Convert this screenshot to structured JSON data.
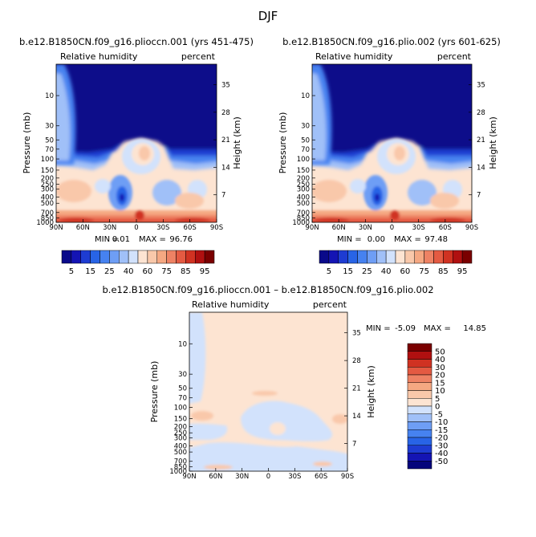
{
  "figure": {
    "title": "DJF",
    "level_colors_abs": [
      "#0a0a8a",
      "#1414b4",
      "#1e3cd2",
      "#2864e6",
      "#4682f0",
      "#6e9ef5",
      "#a0c0f8",
      "#d2e2fc",
      "#fde4d2",
      "#f9c8aa",
      "#f5a882",
      "#ee8264",
      "#e45a42",
      "#d03222",
      "#b01010",
      "#7a0000"
    ],
    "level_colors_diff": [
      "#04047c",
      "#1414b4",
      "#1e3cd2",
      "#2864e6",
      "#4682f0",
      "#6e9ef5",
      "#a0c0f8",
      "#d2e2fc",
      "#fde4d2",
      "#f9c8aa",
      "#f5a882",
      "#ee8264",
      "#e45a42",
      "#d03222",
      "#b01010",
      "#7a0000"
    ]
  },
  "chart_data": [
    {
      "type": "heatmap",
      "title": "b.e12.B1850CN.f09_g16.plioccn.001 (yrs 451-475)",
      "left_label": "Relative humidity",
      "right_label": "percent",
      "xlabel": "",
      "ylabel": "Pressure (mb)",
      "y2label": "Height (km)",
      "x_ticks": [
        "90N",
        "60N",
        "30N",
        "0",
        "30S",
        "60S",
        "90S"
      ],
      "y_ticks": [
        "10",
        "30",
        "50",
        "70",
        "100",
        "150",
        "200",
        "250",
        "300",
        "400",
        "500",
        "700",
        "850",
        "1000"
      ],
      "y2_ticks": [
        "35",
        "28",
        "21",
        "14",
        "7"
      ],
      "xlim": [
        90,
        -90
      ],
      "ylim": [
        1000,
        3
      ],
      "min_label": "MIN =",
      "min": "0.01",
      "max_label": "MAX =",
      "max": "96.76",
      "colorbar_labels": [
        "5",
        "15",
        "25",
        "40",
        "60",
        "75",
        "85",
        "95"
      ]
    },
    {
      "type": "heatmap",
      "title": "b.e12.B1850CN.f09_g16.plio.002 (yrs 601-625)",
      "left_label": "Relative humidity",
      "right_label": "percent",
      "xlabel": "",
      "ylabel": "Pressure (mb)",
      "y2label": "Height (km)",
      "x_ticks": [
        "90N",
        "60N",
        "30N",
        "0",
        "30S",
        "60S",
        "90S"
      ],
      "y_ticks": [
        "10",
        "30",
        "50",
        "70",
        "100",
        "150",
        "200",
        "250",
        "300",
        "400",
        "500",
        "700",
        "850",
        "1000"
      ],
      "y2_ticks": [
        "35",
        "28",
        "21",
        "14",
        "7"
      ],
      "xlim": [
        90,
        -90
      ],
      "ylim": [
        1000,
        3
      ],
      "min_label": "MIN =",
      "min": "0.00",
      "max_label": "MAX =",
      "max": "97.48",
      "colorbar_labels": [
        "5",
        "15",
        "25",
        "40",
        "60",
        "75",
        "85",
        "95"
      ]
    },
    {
      "type": "heatmap",
      "title": "b.e12.B1850CN.f09_g16.plioccn.001 – b.e12.B1850CN.f09_g16.plio.002",
      "left_label": "Relative humidity",
      "right_label": "percent",
      "xlabel": "",
      "ylabel": "Pressure (mb)",
      "y2label": "Height (km)",
      "x_ticks": [
        "90N",
        "60N",
        "30N",
        "0",
        "30S",
        "60S",
        "90S"
      ],
      "y_ticks": [
        "10",
        "30",
        "50",
        "70",
        "100",
        "150",
        "200",
        "250",
        "300",
        "400",
        "500",
        "700",
        "850",
        "1000"
      ],
      "y2_ticks": [
        "35",
        "28",
        "21",
        "14",
        "7"
      ],
      "xlim": [
        90,
        -90
      ],
      "ylim": [
        1000,
        3
      ],
      "min_label": "MIN =",
      "min": "-5.09",
      "max_label": "MAX =",
      "max": "14.85",
      "colorbar_labels": [
        "50",
        "40",
        "30",
        "20",
        "15",
        "10",
        "5",
        "0",
        "-5",
        "-10",
        "-15",
        "-20",
        "-30",
        "-40",
        "-50"
      ]
    }
  ]
}
